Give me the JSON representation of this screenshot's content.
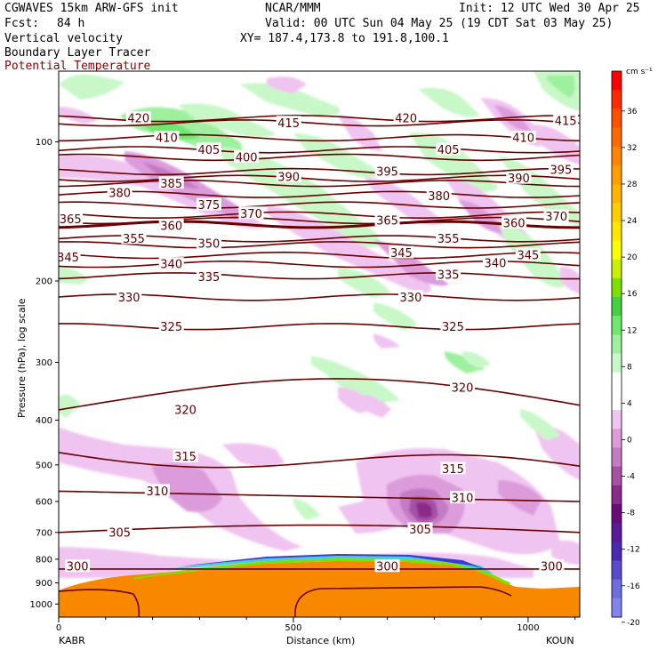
{
  "header": {
    "model": "CGWAVES 15km ARW-GFS init",
    "org": "NCAR/MMM",
    "init": "Init: 12 UTC Wed 30 Apr 25",
    "fcst_label": "Fcst:",
    "fcst_value": "84 h",
    "valid": "Valid: 00 UTC Sun 04 May 25 (19 CDT Sat 03 May 25)",
    "field1": "Vertical velocity",
    "xy": "XY= 187.4,173.8 to 191.8,100.1",
    "field2": "Boundary Layer Tracer",
    "field3": "Potential Temperature"
  },
  "colors": {
    "theta": "#6b0000",
    "terrain": "#f78800",
    "header_red": "#8b0000"
  },
  "chart_data": {
    "type": "heatmap",
    "xlabel": "Distance (km)",
    "ylabel": "Pressure (hPa), log scale",
    "xlim": [
      0,
      1110
    ],
    "x_ticks": [
      0,
      500,
      1000
    ],
    "y_ticks": [
      100,
      200,
      300,
      400,
      500,
      600,
      700,
      800,
      900,
      1000
    ],
    "start_station": "KABR",
    "end_station": "KOUN",
    "colorbar": {
      "unit": "cm s⁻¹",
      "labels": [
        36,
        32,
        28,
        24,
        20,
        16,
        12,
        8,
        4,
        0,
        -4,
        -8,
        -12,
        -16,
        -20
      ],
      "colors": [
        "#ff0000",
        "#ff2a00",
        "#ff5000",
        "#ff6a00",
        "#ff8400",
        "#ff9e00",
        "#ffb400",
        "#ffcc00",
        "#ffe600",
        "#fcff00",
        "#c8f000",
        "#7ee000",
        "#45d040",
        "#6ee86e",
        "#9ef09e",
        "#c8f8c8",
        "#ffffff",
        "#ffffff",
        "#f0c4f0",
        "#dc9cdc",
        "#c47ac4",
        "#a650a6",
        "#8a2a8a",
        "#6a0a7a",
        "#5a1a9a",
        "#4a2ab4",
        "#5a4acc",
        "#6e6ee0",
        "#8282f0"
      ]
    },
    "theta_levels": [
      300,
      305,
      310,
      315,
      320,
      325,
      330,
      335,
      340,
      345,
      350,
      355,
      360,
      365,
      370,
      375,
      380,
      385,
      390,
      395,
      400,
      405,
      410,
      415,
      420
    ],
    "theta_labels": [
      {
        "v": "420",
        "x": 170,
        "p": 89
      },
      {
        "v": "420",
        "x": 740,
        "p": 89
      },
      {
        "v": "415",
        "x": 490,
        "p": 91
      },
      {
        "v": "415",
        "x": 1080,
        "p": 90
      },
      {
        "v": "410",
        "x": 230,
        "p": 98
      },
      {
        "v": "410",
        "x": 990,
        "p": 98
      },
      {
        "v": "405",
        "x": 320,
        "p": 104
      },
      {
        "v": "405",
        "x": 830,
        "p": 104
      },
      {
        "v": "400",
        "x": 400,
        "p": 108
      },
      {
        "v": "395",
        "x": 700,
        "p": 116
      },
      {
        "v": "395",
        "x": 1070,
        "p": 115
      },
      {
        "v": "390",
        "x": 490,
        "p": 119
      },
      {
        "v": "390",
        "x": 980,
        "p": 120
      },
      {
        "v": "385",
        "x": 240,
        "p": 123
      },
      {
        "v": "380",
        "x": 130,
        "p": 129
      },
      {
        "v": "380",
        "x": 810,
        "p": 131
      },
      {
        "v": "375",
        "x": 320,
        "p": 137
      },
      {
        "v": "370",
        "x": 410,
        "p": 143
      },
      {
        "v": "370",
        "x": 1060,
        "p": 145
      },
      {
        "v": "365",
        "x": 25,
        "p": 147
      },
      {
        "v": "365",
        "x": 700,
        "p": 148
      },
      {
        "v": "360",
        "x": 240,
        "p": 152
      },
      {
        "v": "360",
        "x": 970,
        "p": 150
      },
      {
        "v": "355",
        "x": 160,
        "p": 162
      },
      {
        "v": "355",
        "x": 830,
        "p": 162
      },
      {
        "v": "350",
        "x": 320,
        "p": 166
      },
      {
        "v": "345",
        "x": 20,
        "p": 178
      },
      {
        "v": "345",
        "x": 730,
        "p": 174
      },
      {
        "v": "345",
        "x": 1000,
        "p": 176
      },
      {
        "v": "340",
        "x": 240,
        "p": 184
      },
      {
        "v": "340",
        "x": 930,
        "p": 183
      },
      {
        "v": "335",
        "x": 320,
        "p": 196
      },
      {
        "v": "335",
        "x": 830,
        "p": 194
      },
      {
        "v": "330",
        "x": 150,
        "p": 217
      },
      {
        "v": "330",
        "x": 750,
        "p": 217
      },
      {
        "v": "325",
        "x": 240,
        "p": 251
      },
      {
        "v": "325",
        "x": 840,
        "p": 251
      },
      {
        "v": "320",
        "x": 270,
        "p": 380
      },
      {
        "v": "320",
        "x": 860,
        "p": 340
      },
      {
        "v": "315",
        "x": 270,
        "p": 480
      },
      {
        "v": "315",
        "x": 840,
        "p": 510
      },
      {
        "v": "310",
        "x": 210,
        "p": 570
      },
      {
        "v": "310",
        "x": 860,
        "p": 590
      },
      {
        "v": "305",
        "x": 130,
        "p": 700
      },
      {
        "v": "305",
        "x": 770,
        "p": 690
      },
      {
        "v": "300",
        "x": 40,
        "p": 830
      },
      {
        "v": "300",
        "x": 700,
        "p": 830
      },
      {
        "v": "300",
        "x": 1050,
        "p": 830
      }
    ]
  }
}
